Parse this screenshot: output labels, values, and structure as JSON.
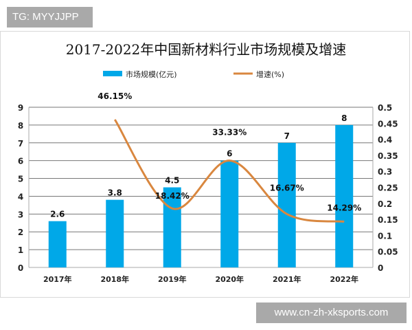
{
  "watermark_top": "TG: MYYJJPP",
  "watermark_bottom": "www.cn-zh-xksports.com",
  "chart_data": {
    "type": "bar+line",
    "title": "2017-2022年中国新材料行业市场规模及增速",
    "categories": [
      "2017年",
      "2018年",
      "2019年",
      "2020年",
      "2021年",
      "2022年"
    ],
    "series": [
      {
        "name": "市场规模(亿元)",
        "type": "bar",
        "axis": "left",
        "color": "#00a8e8",
        "values": [
          2.6,
          3.8,
          4.5,
          6,
          7,
          8
        ],
        "labels": [
          "2.6",
          "3.8",
          "4.5",
          "6",
          "7",
          "8"
        ]
      },
      {
        "name": "增速(%)",
        "type": "line",
        "axis": "right",
        "color": "#d9873f",
        "values": [
          null,
          0.4615,
          0.1842,
          0.3333,
          0.1667,
          0.1429
        ],
        "labels": [
          "",
          "46.15%",
          "18.42%",
          "33.33%",
          "16.67%",
          "14.29%"
        ]
      }
    ],
    "left_axis": {
      "min": 0,
      "max": 9,
      "ticks": [
        "0",
        "1",
        "2",
        "3",
        "4",
        "5",
        "6",
        "7",
        "8",
        "9"
      ]
    },
    "right_axis": {
      "min": 0,
      "max": 0.5,
      "ticks": [
        "0",
        "0.05",
        "0.1",
        "0.15",
        "0.2",
        "0.25",
        "0.3",
        "0.35",
        "0.4",
        "0.45",
        "0.5"
      ]
    },
    "grid": true,
    "legend": "top"
  }
}
